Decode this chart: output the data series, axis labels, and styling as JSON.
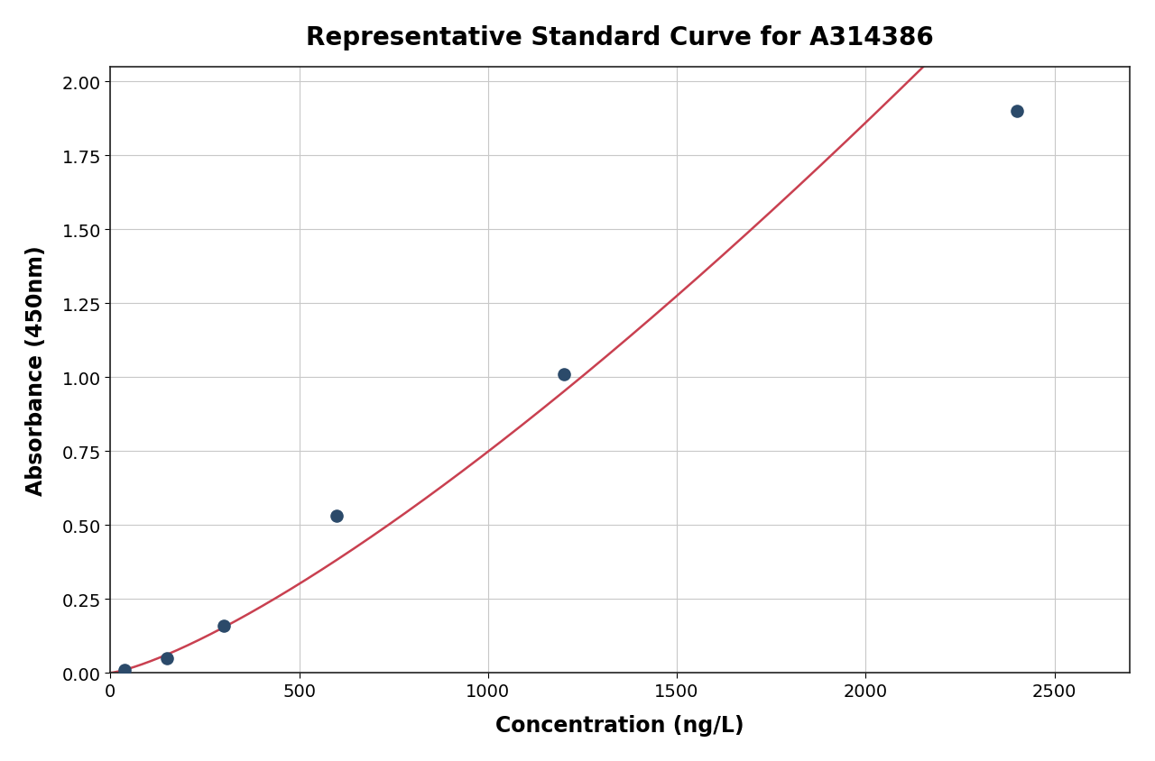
{
  "title": "Representative Standard Curve for A314386",
  "xlabel": "Concentration (ng/L)",
  "ylabel": "Absorbance (450nm)",
  "scatter_x": [
    37.5,
    150,
    300,
    600,
    1200,
    2400
  ],
  "scatter_y": [
    0.01,
    0.05,
    0.16,
    0.53,
    1.01,
    1.9
  ],
  "scatter_color": "#2b4a6a",
  "scatter_size": 90,
  "curve_color": "#c94050",
  "curve_linewidth": 1.8,
  "xlim": [
    0,
    2700
  ],
  "ylim": [
    0.0,
    2.05
  ],
  "xticks": [
    0,
    500,
    1000,
    1500,
    2000,
    2500
  ],
  "yticks": [
    0.0,
    0.25,
    0.5,
    0.75,
    1.0,
    1.25,
    1.5,
    1.75,
    2.0
  ],
  "title_fontsize": 20,
  "axis_label_fontsize": 17,
  "tick_fontsize": 14,
  "grid_color": "#c8c8c8",
  "background_color": "#ffffff",
  "figure_bg": "#ffffff"
}
